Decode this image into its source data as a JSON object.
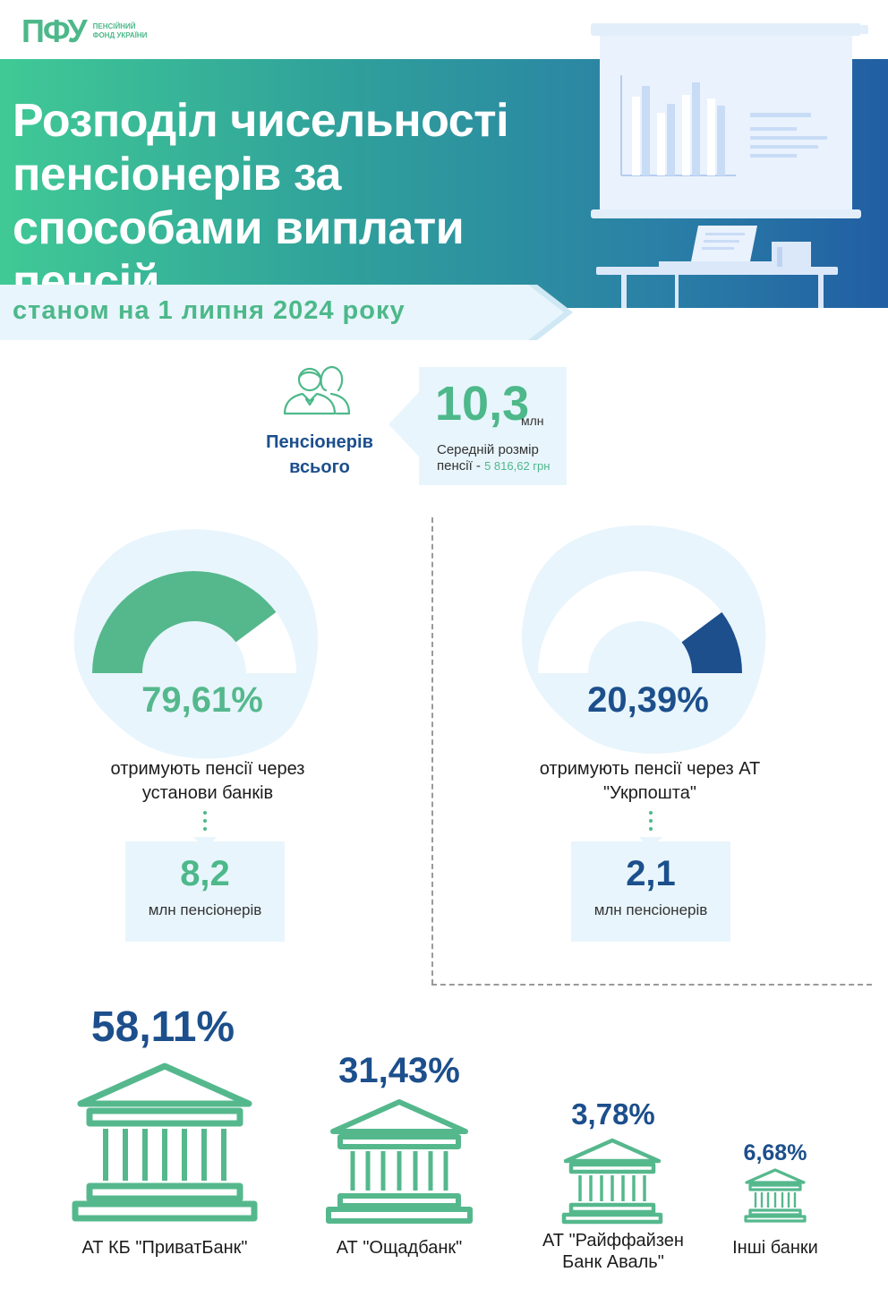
{
  "logo": {
    "mark": "ПФУ",
    "text": "ПЕНСІЙНИЙ ФОНД УКРАЇНИ"
  },
  "header": {
    "title": "Розподіл чисельності пенсіонерів за способами виплати пенсій",
    "subtitle": "станом на 1 липня 2024 року"
  },
  "total": {
    "label": "Пенсіонерів всього",
    "value": "10,3",
    "unit": "млн",
    "note_prefix": "Середній розмір пенсії - ",
    "note_amount": "5 816,62 грн"
  },
  "banks_channel": {
    "percent": "79,61%",
    "share": 0.7961,
    "description": "отримують пенсії через установи банків",
    "count": "8,2",
    "count_unit": "млн пенсіонерів",
    "color": "#55b88d"
  },
  "post_channel": {
    "percent": "20,39%",
    "share": 0.2039,
    "description": "отримують пенсії через АТ \"Укрпошта\"",
    "count": "2,1",
    "count_unit": "млн пенсіонерів",
    "color": "#1c4f8c"
  },
  "banks": [
    {
      "percent": "58,11%",
      "name": "АТ КБ \"ПриватБанк\""
    },
    {
      "percent": "31,43%",
      "name": "АТ \"Ощадбанк\""
    },
    {
      "percent": "3,78%",
      "name": "АТ \"Райффайзен Банк Аваль\""
    },
    {
      "percent": "6,68%",
      "name": "Інші банки"
    }
  ],
  "colors": {
    "green": "#4db88a",
    "navy": "#1c4f8c",
    "light_blue": "#e8f5fc"
  },
  "icons": {
    "people": "people-icon",
    "bank": "bank-building-icon",
    "presentation": "presentation-board-icon"
  }
}
